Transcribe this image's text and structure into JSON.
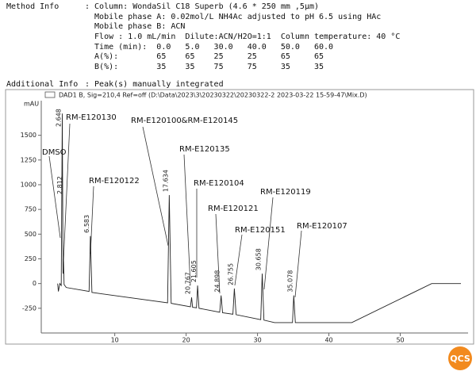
{
  "header": {
    "method_label": "Method Info",
    "method_lines": [
      ": Column: WondaSil C18 Superb (4.6 * 250 mm ,5µm)",
      "  Mobile phase A: 0.02mol/L NH4Ac adjusted to pH 6.5 using HAc",
      "  Mobile phase B: ACN",
      "  Flow : 1.0 mL/min  Dilute:ACN/H2O=1:1  Column temperature: 40 °C",
      "  Time (min):  0.0   5.0   30.0   40.0   50.0   60.0",
      "  A(%):        65    65    25     25     65     65",
      "  B(%):        35    35    75     75     35     35"
    ],
    "additional_label": "Additional Info",
    "additional_text": ": Peak(s) manually integrated"
  },
  "chart_data": {
    "type": "line",
    "title": "DAD1 B, Sig=210,4 Ref=off (D:\\Data\\2023\\3\\20230322\\20230322-2 2023-03-22 15-59-47\\Mix.D)",
    "ylabel": "mAU",
    "color": "#222222",
    "x": [
      2.0,
      2.1,
      2.3,
      2.5,
      2.648,
      2.75,
      2.812,
      2.9,
      3.2,
      6.4,
      6.583,
      6.8,
      17.4,
      17.634,
      17.9,
      20.6,
      20.767,
      20.9,
      21.45,
      21.605,
      21.8,
      24.7,
      24.898,
      25.1,
      26.55,
      26.755,
      27.0,
      30.45,
      30.658,
      30.9,
      32.4,
      34.9,
      35.078,
      35.3,
      43.2,
      54.4,
      58.5
    ],
    "values": [
      0,
      -80,
      0,
      -20,
      1720,
      100,
      250,
      -10,
      -40,
      -80,
      480,
      -90,
      -195,
      895,
      -200,
      -235,
      -140,
      -240,
      -245,
      -20,
      -250,
      -290,
      -120,
      -295,
      -310,
      -50,
      -315,
      -365,
      100,
      -370,
      -395,
      -395,
      -120,
      -395,
      -395,
      0,
      0
    ],
    "peak_labels": [
      2.648,
      2.812,
      6.583,
      17.634,
      20.767,
      21.605,
      24.898,
      26.755,
      30.658,
      35.078
    ],
    "annotations": [
      "DMSO",
      "RM-E120130",
      "RM-E120122",
      "RM-E120100&RM-E120145",
      "RM-E120135",
      "RM-E120104",
      "RM-E120121",
      "RM-E120151",
      "RM-E120119",
      "RM-E120107"
    ],
    "xlim": [
      -0.3,
      59.5
    ],
    "ylim": [
      -500,
      1850
    ],
    "xticks": [
      10,
      20,
      30,
      40,
      50
    ],
    "yticks": [
      -250,
      0,
      250,
      500,
      750,
      1000,
      1250,
      1500
    ],
    "watermark": "QCS"
  }
}
